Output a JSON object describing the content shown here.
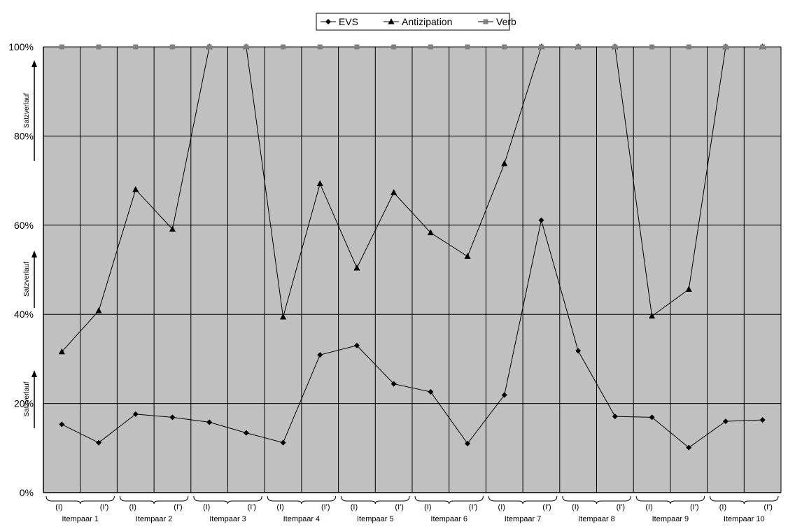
{
  "chart_data": {
    "type": "line",
    "categories": [
      "(I)",
      "(I')",
      "(I)",
      "(I')",
      "(I)",
      "(I')",
      "(I)",
      "(I')",
      "(I)",
      "(I')",
      "(I)",
      "(I')",
      "(I)",
      "(I')",
      "(I)",
      "(I')",
      "(I)",
      "(I')",
      "(I)",
      "(I')"
    ],
    "groups": [
      "Itempaar 1",
      "Itempaar 2",
      "Itempaar 3",
      "Itempaar 4",
      "Itempaar 5",
      "Itempaar 6",
      "Itempaar 7",
      "Itempaar 8",
      "Itempaar 9",
      "Itempaar 10"
    ],
    "series": [
      {
        "name": "EVS",
        "marker": "diamond",
        "values": [
          15.3,
          11.2,
          17.6,
          16.9,
          15.8,
          13.4,
          11.2,
          30.9,
          33.0,
          24.4,
          22.6,
          11.0,
          21.9,
          61.1,
          31.8,
          17.1,
          16.9,
          10.1,
          16.0,
          16.3
        ]
      },
      {
        "name": "Antizipation",
        "marker": "triangle",
        "values": [
          31.6,
          40.8,
          68.0,
          59.1,
          100,
          100,
          39.4,
          69.3,
          50.4,
          67.3,
          58.3,
          53.0,
          73.8,
          100,
          100,
          100,
          39.6,
          45.6,
          100,
          100
        ]
      },
      {
        "name": "Verb",
        "marker": "square",
        "values": [
          100,
          100,
          100,
          100,
          100,
          100,
          100,
          100,
          100,
          100,
          100,
          100,
          100,
          100,
          100,
          100,
          100,
          100,
          100,
          100
        ]
      }
    ],
    "ylim": [
      0,
      100
    ],
    "yticks": [
      "0%",
      "20%",
      "40%",
      "60%",
      "80%",
      "100%"
    ],
    "arrow_label": "Satzverlauf",
    "legend_position": "top-center",
    "grid": true,
    "colors": {
      "plot_bg": "#c0c0c0",
      "line": "#000000",
      "verb_marker": "#808080"
    }
  }
}
